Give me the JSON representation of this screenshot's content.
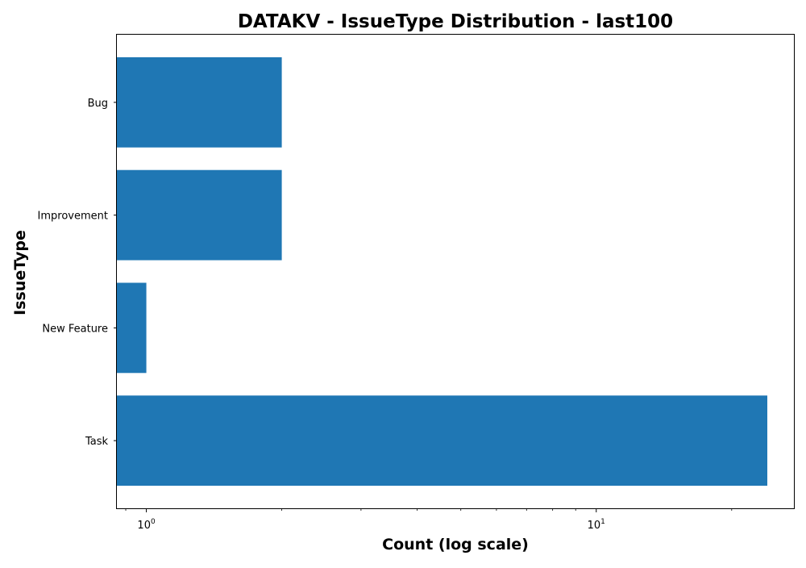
{
  "chart_data": {
    "type": "bar",
    "orientation": "horizontal",
    "title": "DATAKV - IssueType Distribution - last100",
    "xlabel": "Count (log scale)",
    "ylabel": "IssueType",
    "x_scale": "log",
    "xlim": [
      0.86,
      27.5
    ],
    "x_ticks": [
      {
        "value": 1,
        "base": "10",
        "exp": "0"
      },
      {
        "value": 10,
        "base": "10",
        "exp": "1"
      }
    ],
    "categories": [
      "Bug",
      "Improvement",
      "New Feature",
      "Task"
    ],
    "values": [
      2,
      2,
      1,
      24
    ],
    "bar_color": "#1f77b4",
    "grid": false,
    "legend": "none"
  }
}
